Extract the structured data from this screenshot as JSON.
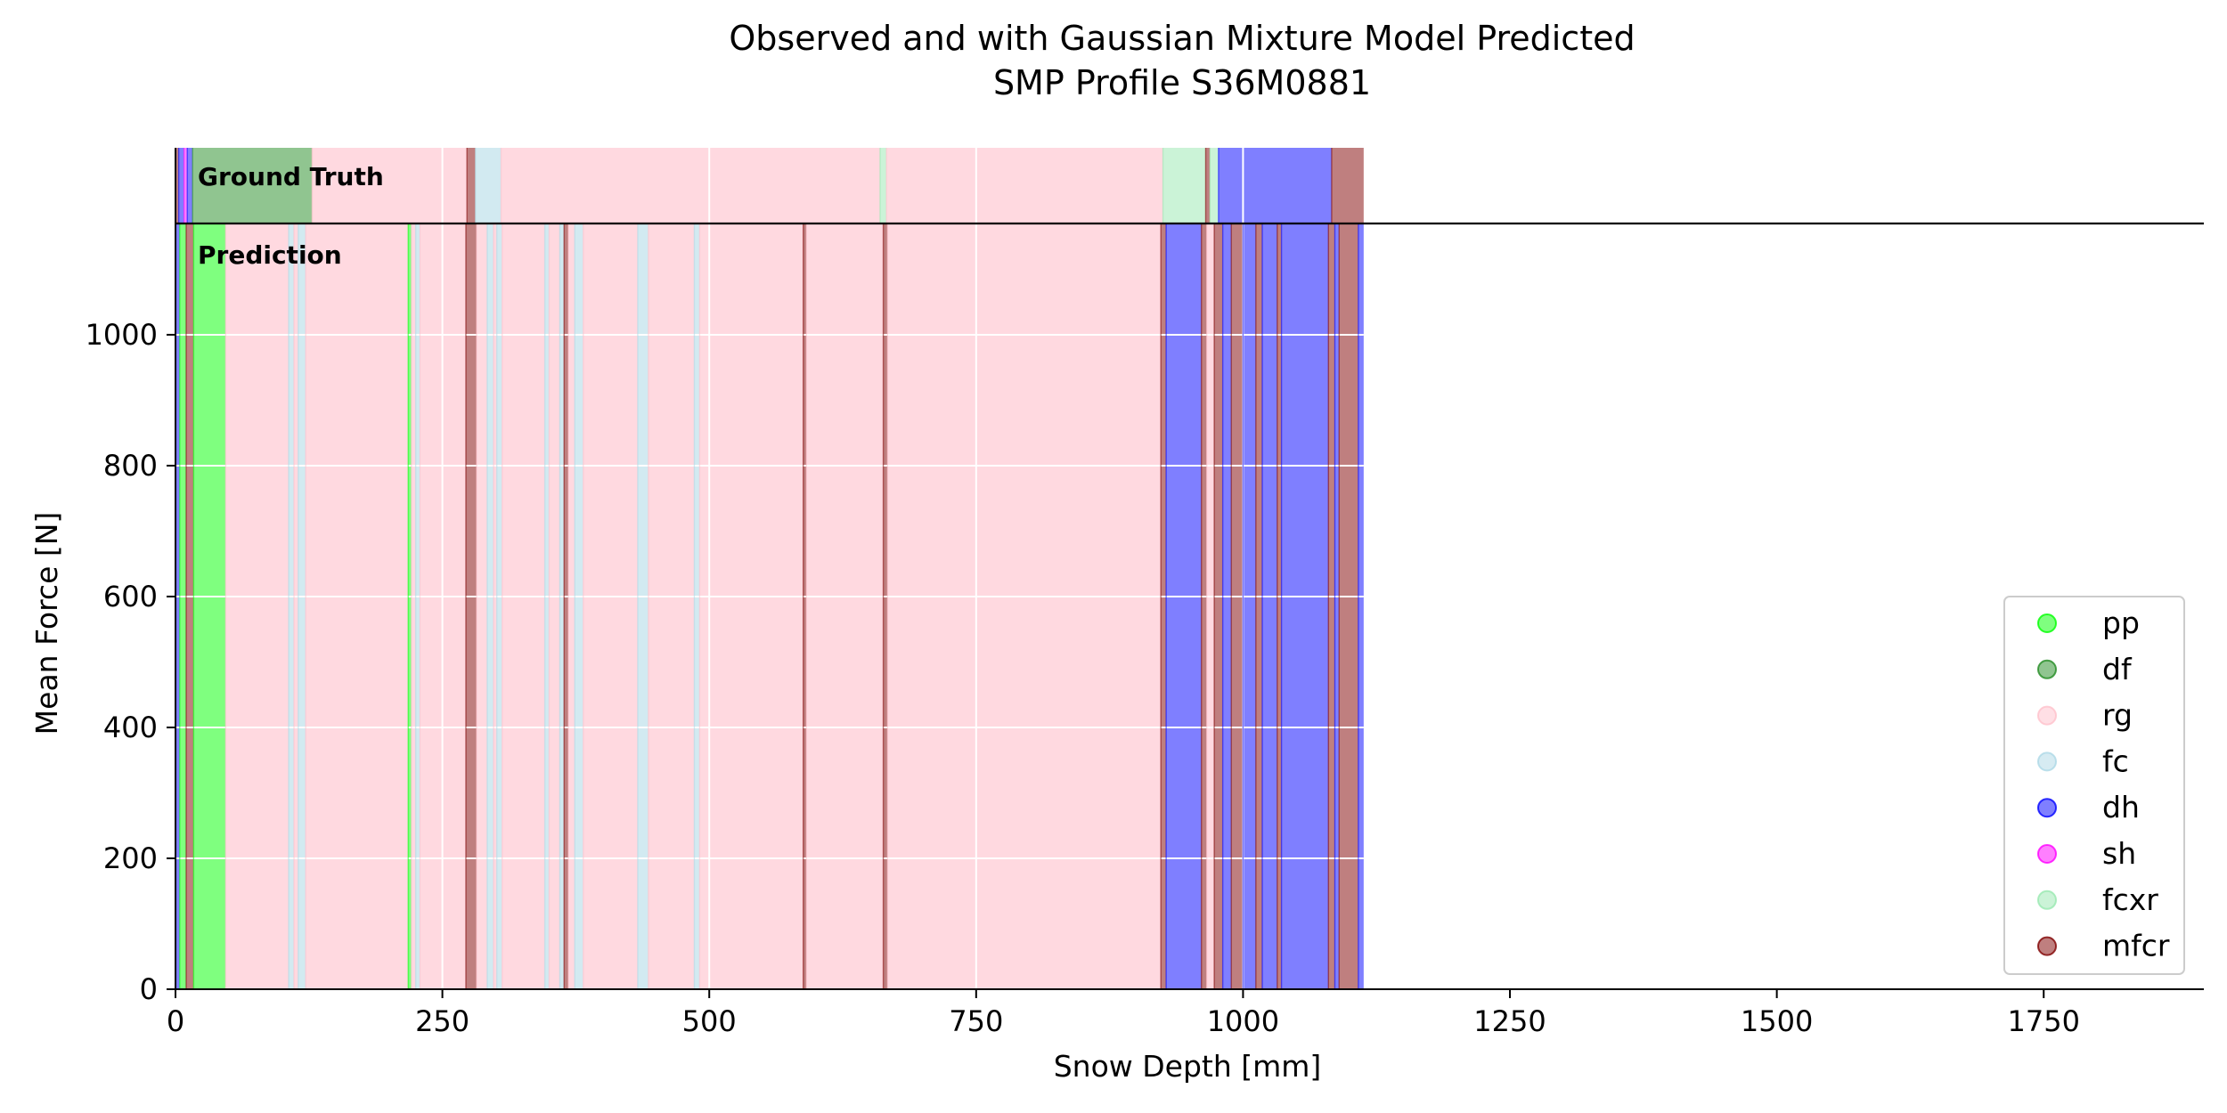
{
  "chart_data": {
    "type": "area",
    "title": "Observed and with Gaussian Mixture Model Predicted",
    "subtitle": "SMP Profile S36M0881",
    "xlabel": "Snow Depth [mm]",
    "ylabel": "Mean Force [N]",
    "xlim": [
      0,
      1900
    ],
    "ylim": [
      0,
      1170
    ],
    "x_ticks": [
      0,
      250,
      500,
      750,
      1000,
      1250,
      1500,
      1750
    ],
    "y_ticks": [
      0,
      200,
      400,
      600,
      800,
      1000
    ],
    "grid": true,
    "legend_position": "lower-right",
    "panel_labels": {
      "ground_truth": "Ground Truth",
      "prediction": "Prediction"
    },
    "classes": [
      {
        "name": "pp",
        "color": "#00ff00"
      },
      {
        "name": "df",
        "color": "#228b22"
      },
      {
        "name": "rg",
        "color": "#ffc0cb"
      },
      {
        "name": "fc",
        "color": "#add8e6"
      },
      {
        "name": "dh",
        "color": "#0000ff"
      },
      {
        "name": "sh",
        "color": "#ff00ff"
      },
      {
        "name": "fcxr",
        "color": "#98e8b0"
      },
      {
        "name": "mfcr",
        "color": "#800000"
      }
    ],
    "ground_truth": [
      {
        "start": 0,
        "end": 3,
        "label": "mfcr"
      },
      {
        "start": 3,
        "end": 8,
        "label": "dh"
      },
      {
        "start": 8,
        "end": 11,
        "label": "sh"
      },
      {
        "start": 11,
        "end": 16,
        "label": "dh"
      },
      {
        "start": 16,
        "end": 128,
        "label": "df"
      },
      {
        "start": 128,
        "end": 273,
        "label": "rg"
      },
      {
        "start": 273,
        "end": 281,
        "label": "mfcr"
      },
      {
        "start": 281,
        "end": 305,
        "label": "fc"
      },
      {
        "start": 305,
        "end": 660,
        "label": "rg"
      },
      {
        "start": 660,
        "end": 666,
        "label": "fcxr"
      },
      {
        "start": 666,
        "end": 925,
        "label": "rg"
      },
      {
        "start": 925,
        "end": 965,
        "label": "fcxr"
      },
      {
        "start": 965,
        "end": 969,
        "label": "mfcr"
      },
      {
        "start": 969,
        "end": 977,
        "label": "fcxr"
      },
      {
        "start": 977,
        "end": 1083,
        "label": "dh"
      },
      {
        "start": 1083,
        "end": 1113,
        "label": "mfcr"
      }
    ],
    "prediction": [
      {
        "start": 0,
        "end": 4,
        "label": "dh"
      },
      {
        "start": 4,
        "end": 10,
        "label": "pp"
      },
      {
        "start": 10,
        "end": 17,
        "label": "mfcr"
      },
      {
        "start": 17,
        "end": 47,
        "label": "pp"
      },
      {
        "start": 47,
        "end": 106,
        "label": "rg"
      },
      {
        "start": 106,
        "end": 111,
        "label": "fc"
      },
      {
        "start": 111,
        "end": 115,
        "label": "rg"
      },
      {
        "start": 115,
        "end": 122,
        "label": "fc"
      },
      {
        "start": 122,
        "end": 218,
        "label": "rg"
      },
      {
        "start": 218,
        "end": 221,
        "label": "pp"
      },
      {
        "start": 221,
        "end": 225,
        "label": "rg"
      },
      {
        "start": 225,
        "end": 229,
        "label": "fc"
      },
      {
        "start": 229,
        "end": 272,
        "label": "rg"
      },
      {
        "start": 272,
        "end": 282,
        "label": "mfcr"
      },
      {
        "start": 282,
        "end": 292,
        "label": "rg"
      },
      {
        "start": 292,
        "end": 298,
        "label": "fc"
      },
      {
        "start": 298,
        "end": 301,
        "label": "rg"
      },
      {
        "start": 301,
        "end": 306,
        "label": "fc"
      },
      {
        "start": 306,
        "end": 346,
        "label": "rg"
      },
      {
        "start": 346,
        "end": 350,
        "label": "fc"
      },
      {
        "start": 350,
        "end": 360,
        "label": "rg"
      },
      {
        "start": 360,
        "end": 364,
        "label": "fc"
      },
      {
        "start": 364,
        "end": 368,
        "label": "mfcr"
      },
      {
        "start": 368,
        "end": 374,
        "label": "rg"
      },
      {
        "start": 374,
        "end": 382,
        "label": "fc"
      },
      {
        "start": 382,
        "end": 433,
        "label": "rg"
      },
      {
        "start": 433,
        "end": 443,
        "label": "fc"
      },
      {
        "start": 443,
        "end": 486,
        "label": "rg"
      },
      {
        "start": 486,
        "end": 491,
        "label": "fc"
      },
      {
        "start": 491,
        "end": 588,
        "label": "rg"
      },
      {
        "start": 588,
        "end": 591,
        "label": "mfcr"
      },
      {
        "start": 591,
        "end": 663,
        "label": "rg"
      },
      {
        "start": 663,
        "end": 667,
        "label": "mfcr"
      },
      {
        "start": 667,
        "end": 923,
        "label": "rg"
      },
      {
        "start": 923,
        "end": 928,
        "label": "mfcr"
      },
      {
        "start": 928,
        "end": 961,
        "label": "dh"
      },
      {
        "start": 961,
        "end": 966,
        "label": "mfcr"
      },
      {
        "start": 966,
        "end": 973,
        "label": "rg"
      },
      {
        "start": 973,
        "end": 981,
        "label": "mfcr"
      },
      {
        "start": 981,
        "end": 989,
        "label": "dh"
      },
      {
        "start": 989,
        "end": 1000,
        "label": "mfcr"
      },
      {
        "start": 1000,
        "end": 1012,
        "label": "dh"
      },
      {
        "start": 1012,
        "end": 1018,
        "label": "mfcr"
      },
      {
        "start": 1018,
        "end": 1032,
        "label": "dh"
      },
      {
        "start": 1032,
        "end": 1036,
        "label": "mfcr"
      },
      {
        "start": 1036,
        "end": 1080,
        "label": "dh"
      },
      {
        "start": 1080,
        "end": 1086,
        "label": "mfcr"
      },
      {
        "start": 1086,
        "end": 1090,
        "label": "dh"
      },
      {
        "start": 1090,
        "end": 1108,
        "label": "mfcr"
      },
      {
        "start": 1108,
        "end": 1113,
        "label": "dh"
      }
    ]
  }
}
